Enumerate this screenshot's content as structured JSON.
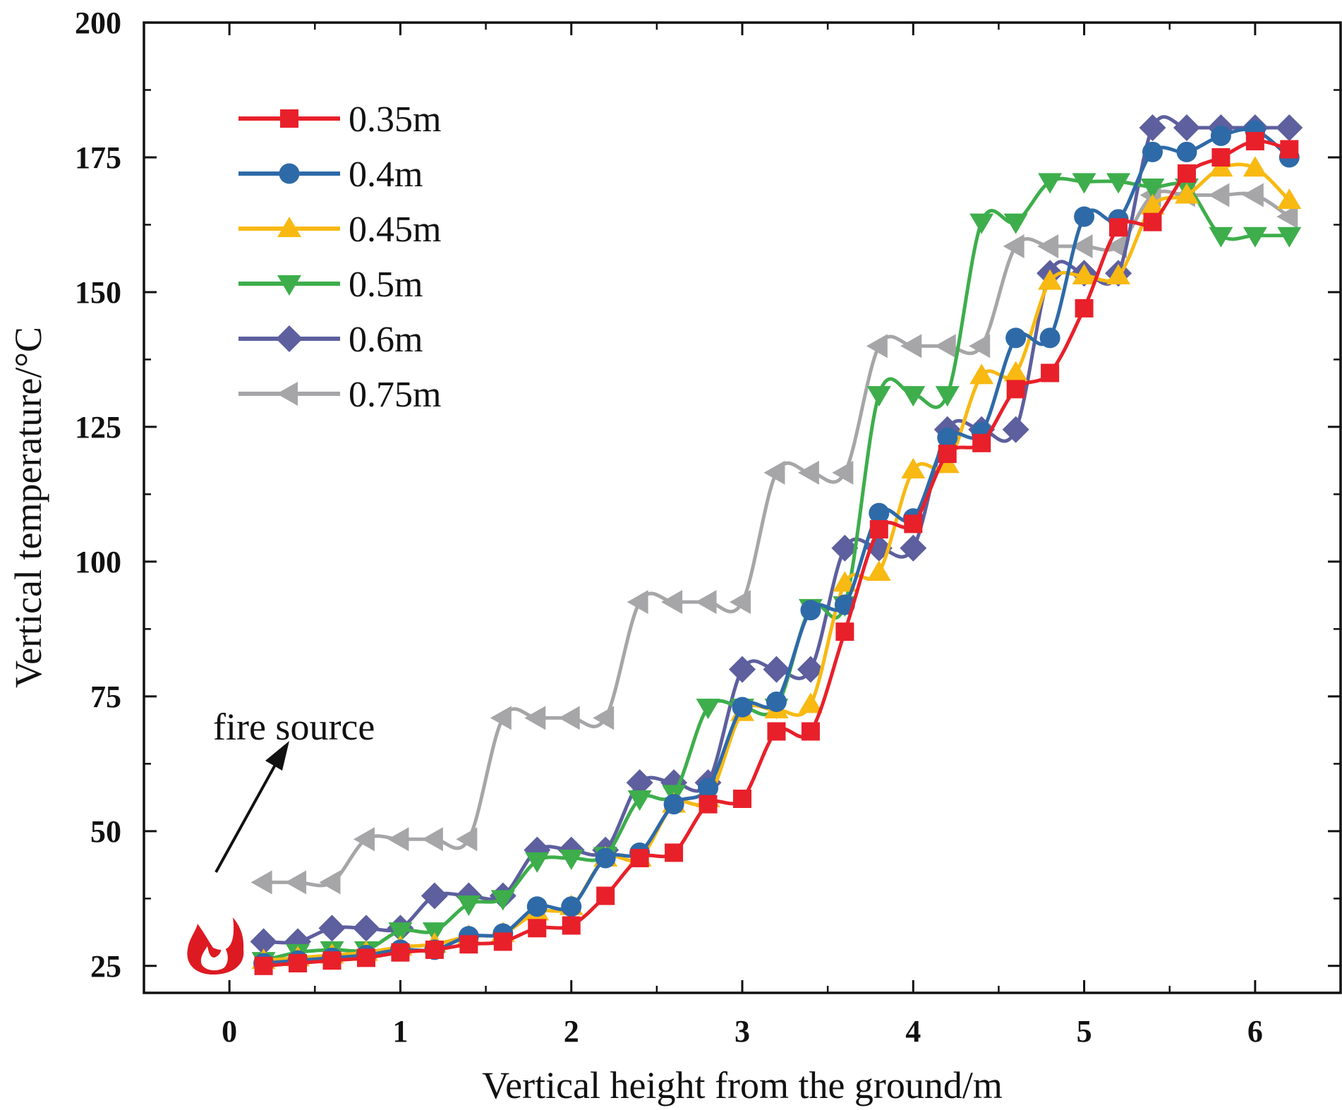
{
  "chart_data": {
    "type": "line",
    "title": "",
    "xlabel": "Vertical height from the ground/m",
    "ylabel": "Vertical temperature/°C",
    "xlim": [
      -0.5,
      6.5
    ],
    "ylim": [
      20,
      200
    ],
    "xticks": [
      0,
      1,
      2,
      3,
      4,
      5,
      6
    ],
    "yticks": [
      25,
      50,
      75,
      100,
      125,
      150,
      175,
      200
    ],
    "legend_position": "top-left",
    "annotation": "fire source",
    "fire_icon": "flame-icon",
    "x": [
      0.2,
      0.4,
      0.6,
      0.8,
      1.0,
      1.2,
      1.4,
      1.6,
      1.8,
      2.0,
      2.2,
      2.4,
      2.6,
      2.8,
      3.0,
      3.2,
      3.4,
      3.6,
      3.8,
      4.0,
      4.2,
      4.4,
      4.6,
      4.8,
      5.0,
      5.2,
      5.4,
      5.6,
      5.8,
      6.0,
      6.2
    ],
    "series": [
      {
        "name": "0.35m",
        "color": "#e8202a",
        "marker": "square",
        "values": [
          25,
          25.5,
          26,
          26.5,
          27.5,
          28,
          29,
          29.5,
          32,
          32.5,
          38,
          45,
          46,
          55,
          56,
          68.5,
          68.5,
          87,
          106,
          107,
          120,
          122,
          132,
          135,
          147,
          162,
          163,
          172,
          175,
          178,
          176.5
        ]
      },
      {
        "name": "0.4m",
        "color": "#2e6aa8",
        "marker": "circle",
        "values": [
          25.5,
          26,
          26.5,
          27,
          28,
          28,
          30.5,
          31,
          36,
          36,
          45,
          46,
          55,
          58,
          73,
          74,
          91,
          92,
          109,
          108,
          123,
          124,
          141.5,
          141.5,
          164,
          163.5,
          176,
          176,
          179,
          180,
          175
        ]
      },
      {
        "name": "0.45m",
        "color": "#f8b912",
        "marker": "triangle-up",
        "values": [
          26,
          26.5,
          27,
          27.5,
          28.5,
          29,
          30.5,
          31,
          35,
          36,
          45,
          45,
          55,
          56,
          72,
          72.5,
          73.5,
          96,
          98,
          117,
          118,
          134.5,
          135,
          152,
          153,
          153,
          166,
          168,
          173,
          173,
          167
        ]
      },
      {
        "name": "0.5m",
        "color": "#3dae4b",
        "marker": "triangle-down",
        "values": [
          26,
          27.5,
          28,
          28,
          31.5,
          31.5,
          36.5,
          37.5,
          44.5,
          45,
          45.5,
          56,
          57,
          73,
          73,
          73,
          91.5,
          92,
          131,
          131,
          131,
          163,
          163,
          170.5,
          170.5,
          170.5,
          169.5,
          169.5,
          160.5,
          160.5,
          160.5
        ]
      },
      {
        "name": "0.6m",
        "color": "#5d5f9e",
        "marker": "diamond",
        "values": [
          29.5,
          29.5,
          32,
          32,
          32,
          38,
          38,
          38,
          46.5,
          46.5,
          46.5,
          59,
          59,
          59,
          80,
          80,
          80,
          102.5,
          102.5,
          102.5,
          124.5,
          124.5,
          124.5,
          153.5,
          153.5,
          153.5,
          180.5,
          180.5,
          180.5,
          180.5,
          180.5
        ]
      },
      {
        "name": "0.75m",
        "color": "#a6a6a8",
        "marker": "triangle-left",
        "values": [
          40.5,
          40.5,
          40.5,
          48.5,
          48.5,
          48.5,
          48.5,
          71,
          71,
          71,
          71,
          92.5,
          92.5,
          92.5,
          92.5,
          116.5,
          116.5,
          116.5,
          140,
          140,
          140,
          140,
          158.5,
          158.5,
          158.5,
          158.5,
          168,
          168,
          168,
          168,
          164
        ]
      }
    ]
  }
}
